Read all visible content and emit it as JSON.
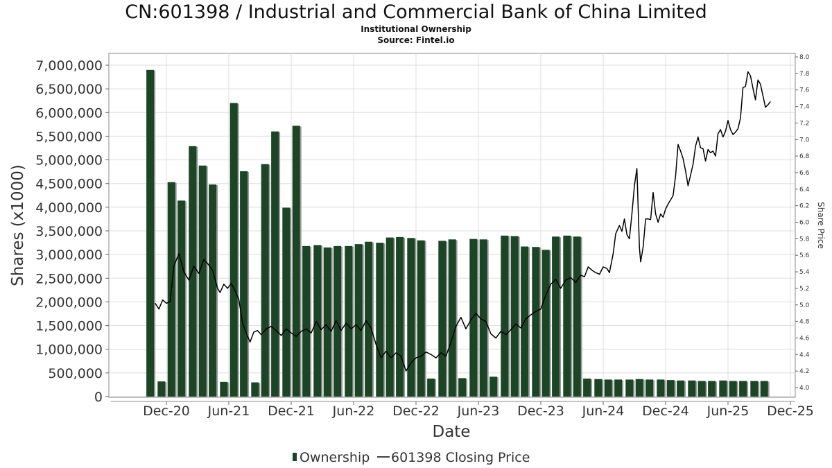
{
  "header": {
    "title": "CN:601398 / Industrial and Commercial Bank of China Limited",
    "subtitle": "Institutional Ownership",
    "source": "Source: Fintel.io"
  },
  "legend": {
    "ownership": "Ownership",
    "price": "601398 Closing Price"
  },
  "colors": {
    "bar": "#1c4526",
    "bar_shadow": "#9a9a9a",
    "line": "#000000",
    "grid": "#dddddd"
  },
  "chart_data": {
    "type": "bar",
    "title": "CN:601398 / Industrial and Commercial Bank of China Limited",
    "xlabel": "Date",
    "ylabel": "Shares (x1000)",
    "y2label": "Share Price",
    "ylim": [
      0,
      7000000
    ],
    "y2lim": [
      4.0,
      8.0
    ],
    "yticks": [
      "0",
      "500,000",
      "1,000,000",
      "1,500,000",
      "2,000,000",
      "2,500,000",
      "3,000,000",
      "3,500,000",
      "4,000,000",
      "4,500,000",
      "5,000,000",
      "5,500,000",
      "6,000,000",
      "6,500,000",
      "7,000,000"
    ],
    "y2ticks": [
      "4.0",
      "4.2",
      "4.4",
      "4.6",
      "4.8",
      "5.0",
      "5.2",
      "5.4",
      "5.6",
      "5.8",
      "6.0",
      "6.2",
      "6.4",
      "6.6",
      "6.8",
      "7.0",
      "7.2",
      "7.4",
      "7.6",
      "7.8",
      "8.0"
    ],
    "xticks": [
      "Dec-20",
      "Jun-21",
      "Dec-21",
      "Jun-22",
      "Dec-22",
      "Jun-23",
      "Dec-23",
      "Jun-24",
      "Dec-24",
      "Jun-25",
      "Dec-25"
    ],
    "grid": true,
    "legend_position": "bottom",
    "series": [
      {
        "name": "Ownership",
        "type": "bar",
        "t": [
          2020.79,
          2020.88,
          2020.96,
          2021.04,
          2021.13,
          2021.21,
          2021.29,
          2021.38,
          2021.46,
          2021.54,
          2021.63,
          2021.71,
          2021.79,
          2021.88,
          2021.96,
          2022.04,
          2022.13,
          2022.21,
          2022.29,
          2022.38,
          2022.46,
          2022.54,
          2022.63,
          2022.71,
          2022.79,
          2022.88,
          2022.96,
          2023.04,
          2023.13,
          2023.21,
          2023.29,
          2023.38,
          2023.46,
          2023.54,
          2023.63,
          2023.71,
          2023.79,
          2023.88,
          2023.96,
          2024.04,
          2024.13,
          2024.21,
          2024.29,
          2024.38,
          2024.46,
          2024.54,
          2024.63,
          2024.71,
          2024.79,
          2024.88,
          2024.96,
          2025.04,
          2025.13,
          2025.21,
          2025.29,
          2025.38,
          2025.46,
          2025.54,
          2025.63,
          2025.71
        ],
        "values": [
          6900000,
          320000,
          4530000,
          4140000,
          5290000,
          4880000,
          4480000,
          310000,
          6200000,
          4760000,
          300000,
          4910000,
          5600000,
          3990000,
          5720000,
          3180000,
          3200000,
          3150000,
          3180000,
          3180000,
          3220000,
          3270000,
          3250000,
          3360000,
          3370000,
          3350000,
          3300000,
          380000,
          3290000,
          3320000,
          390000,
          3330000,
          3320000,
          420000,
          3400000,
          3390000,
          3170000,
          3160000,
          3100000,
          3380000,
          3400000,
          3380000,
          380000,
          370000,
          360000,
          360000,
          360000,
          370000,
          360000,
          360000,
          350000,
          340000,
          340000,
          330000,
          330000,
          340000,
          330000,
          330000,
          330000,
          330000
        ]
      },
      {
        "name": "601398 Closing Price",
        "type": "line",
        "points": [
          [
            2020.83,
            5.02
          ],
          [
            2020.86,
            4.95
          ],
          [
            2020.89,
            5.06
          ],
          [
            2020.92,
            5.02
          ],
          [
            2020.95,
            5.04
          ],
          [
            2020.98,
            5.47
          ],
          [
            2021.02,
            5.62
          ],
          [
            2021.06,
            5.4
          ],
          [
            2021.1,
            5.3
          ],
          [
            2021.14,
            5.47
          ],
          [
            2021.18,
            5.38
          ],
          [
            2021.22,
            5.55
          ],
          [
            2021.25,
            5.5
          ],
          [
            2021.29,
            5.42
          ],
          [
            2021.33,
            5.2
          ],
          [
            2021.35,
            5.15
          ],
          [
            2021.38,
            5.25
          ],
          [
            2021.41,
            5.2
          ],
          [
            2021.44,
            5.26
          ],
          [
            2021.47,
            5.17
          ],
          [
            2021.5,
            5.07
          ],
          [
            2021.53,
            4.78
          ],
          [
            2021.56,
            4.66
          ],
          [
            2021.59,
            4.55
          ],
          [
            2021.62,
            4.67
          ],
          [
            2021.65,
            4.69
          ],
          [
            2021.68,
            4.64
          ],
          [
            2021.72,
            4.71
          ],
          [
            2021.76,
            4.74
          ],
          [
            2021.8,
            4.69
          ],
          [
            2021.84,
            4.63
          ],
          [
            2021.88,
            4.71
          ],
          [
            2021.92,
            4.66
          ],
          [
            2021.96,
            4.62
          ],
          [
            2022.0,
            4.68
          ],
          [
            2022.04,
            4.71
          ],
          [
            2022.08,
            4.66
          ],
          [
            2022.12,
            4.8
          ],
          [
            2022.16,
            4.7
          ],
          [
            2022.2,
            4.76
          ],
          [
            2022.24,
            4.68
          ],
          [
            2022.28,
            4.81
          ],
          [
            2022.32,
            4.69
          ],
          [
            2022.36,
            4.78
          ],
          [
            2022.4,
            4.71
          ],
          [
            2022.44,
            4.76
          ],
          [
            2022.48,
            4.69
          ],
          [
            2022.52,
            4.81
          ],
          [
            2022.56,
            4.72
          ],
          [
            2022.6,
            4.52
          ],
          [
            2022.64,
            4.36
          ],
          [
            2022.68,
            4.44
          ],
          [
            2022.72,
            4.36
          ],
          [
            2022.76,
            4.42
          ],
          [
            2022.8,
            4.38
          ],
          [
            2022.84,
            4.2
          ],
          [
            2022.88,
            4.3
          ],
          [
            2022.92,
            4.36
          ],
          [
            2022.96,
            4.38
          ],
          [
            2023.0,
            4.43
          ],
          [
            2023.04,
            4.4
          ],
          [
            2023.08,
            4.36
          ],
          [
            2023.12,
            4.42
          ],
          [
            2023.16,
            4.38
          ],
          [
            2023.2,
            4.55
          ],
          [
            2023.24,
            4.74
          ],
          [
            2023.28,
            4.85
          ],
          [
            2023.32,
            4.71
          ],
          [
            2023.36,
            4.82
          ],
          [
            2023.4,
            4.9
          ],
          [
            2023.44,
            4.83
          ],
          [
            2023.48,
            4.8
          ],
          [
            2023.52,
            4.65
          ],
          [
            2023.56,
            4.6
          ],
          [
            2023.6,
            4.68
          ],
          [
            2023.64,
            4.64
          ],
          [
            2023.68,
            4.7
          ],
          [
            2023.72,
            4.77
          ],
          [
            2023.76,
            4.72
          ],
          [
            2023.8,
            4.83
          ],
          [
            2023.84,
            4.88
          ],
          [
            2023.88,
            4.92
          ],
          [
            2023.92,
            4.95
          ],
          [
            2023.96,
            5.12
          ],
          [
            2024.0,
            5.25
          ],
          [
            2024.04,
            5.31
          ],
          [
            2024.08,
            5.2
          ],
          [
            2024.12,
            5.3
          ],
          [
            2024.16,
            5.33
          ],
          [
            2024.2,
            5.27
          ],
          [
            2024.24,
            5.36
          ],
          [
            2024.27,
            5.34
          ],
          [
            2024.3,
            5.46
          ],
          [
            2024.33,
            5.42
          ],
          [
            2024.36,
            5.39
          ],
          [
            2024.39,
            5.37
          ],
          [
            2024.42,
            5.46
          ],
          [
            2024.45,
            5.44
          ],
          [
            2024.47,
            5.39
          ],
          [
            2024.5,
            5.62
          ],
          [
            2024.52,
            5.86
          ],
          [
            2024.55,
            5.96
          ],
          [
            2024.57,
            5.89
          ],
          [
            2024.59,
            6.04
          ],
          [
            2024.61,
            5.85
          ],
          [
            2024.63,
            5.8
          ],
          [
            2024.65,
            6.1
          ],
          [
            2024.67,
            6.44
          ],
          [
            2024.69,
            6.65
          ],
          [
            2024.71,
            5.7
          ],
          [
            2024.72,
            5.52
          ],
          [
            2024.74,
            5.7
          ],
          [
            2024.76,
            6.04
          ],
          [
            2024.78,
            6.04
          ],
          [
            2024.8,
            6.03
          ],
          [
            2024.82,
            6.36
          ],
          [
            2024.84,
            6.1
          ],
          [
            2024.86,
            6.0
          ],
          [
            2024.88,
            6.1
          ],
          [
            2024.9,
            6.06
          ],
          [
            2024.92,
            6.16
          ],
          [
            2024.94,
            6.22
          ],
          [
            2024.96,
            6.27
          ],
          [
            2024.98,
            6.32
          ],
          [
            2025.0,
            6.56
          ],
          [
            2025.02,
            6.94
          ],
          [
            2025.04,
            6.86
          ],
          [
            2025.06,
            6.77
          ],
          [
            2025.08,
            6.62
          ],
          [
            2025.1,
            6.44
          ],
          [
            2025.12,
            6.57
          ],
          [
            2025.14,
            6.7
          ],
          [
            2025.16,
            6.92
          ],
          [
            2025.18,
            7.03
          ],
          [
            2025.2,
            6.9
          ],
          [
            2025.22,
            6.89
          ],
          [
            2025.24,
            6.74
          ],
          [
            2025.26,
            6.88
          ],
          [
            2025.28,
            6.84
          ],
          [
            2025.3,
            6.86
          ],
          [
            2025.32,
            6.8
          ],
          [
            2025.34,
            7.07
          ],
          [
            2025.36,
            7.12
          ],
          [
            2025.38,
            7.03
          ],
          [
            2025.4,
            7.1
          ],
          [
            2025.42,
            7.23
          ],
          [
            2025.44,
            7.12
          ],
          [
            2025.46,
            7.06
          ],
          [
            2025.48,
            7.09
          ],
          [
            2025.5,
            7.13
          ],
          [
            2025.52,
            7.26
          ],
          [
            2025.54,
            7.63
          ],
          [
            2025.56,
            7.64
          ],
          [
            2025.58,
            7.82
          ],
          [
            2025.6,
            7.77
          ],
          [
            2025.62,
            7.62
          ],
          [
            2025.64,
            7.48
          ],
          [
            2025.66,
            7.72
          ],
          [
            2025.68,
            7.67
          ],
          [
            2025.7,
            7.53
          ],
          [
            2025.72,
            7.39
          ],
          [
            2025.74,
            7.42
          ],
          [
            2025.76,
            7.46
          ]
        ]
      }
    ]
  }
}
